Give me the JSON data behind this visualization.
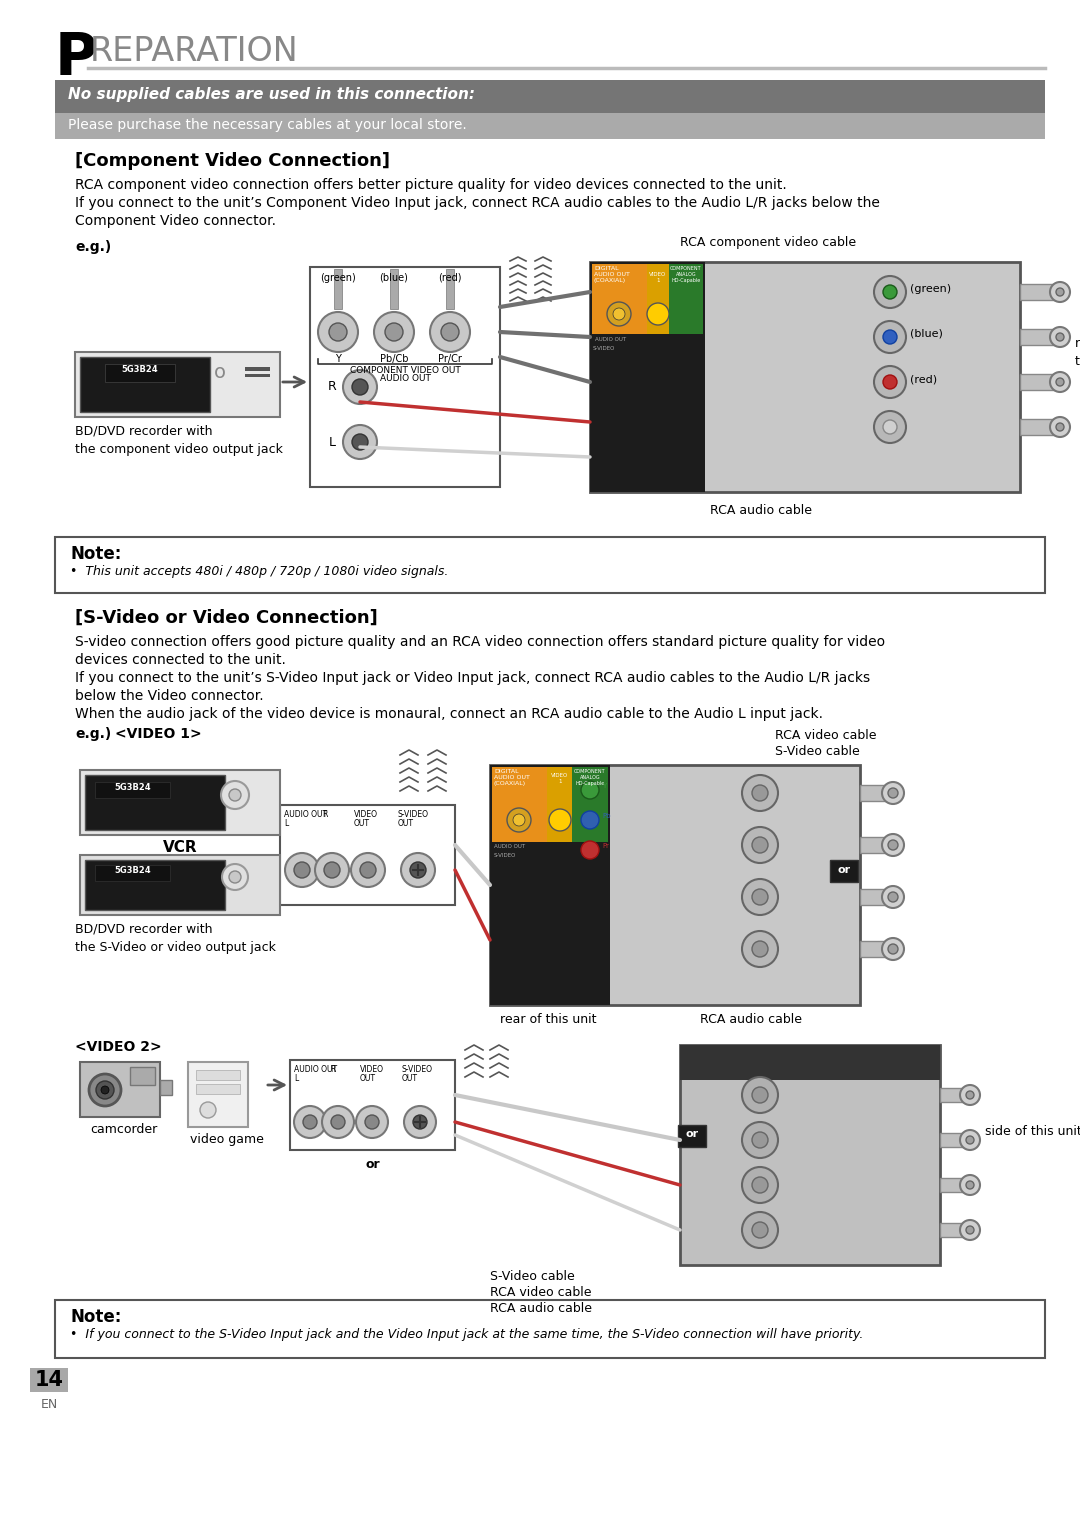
{
  "page_bg": "#ffffff",
  "title_letter": "P",
  "title_rest": "REPARATION",
  "title_letter_color": "#000000",
  "title_rest_color": "#808080",
  "title_line_color": "#a0a0a0",
  "banner_bg_dark": "#7a7a7a",
  "banner_bg_light": "#a8a8a8",
  "banner_text_bold_italic": "No supplied cables are used in this connection:",
  "banner_text_normal": "Please purchase the necessary cables at your local store.",
  "section1_title": "[Component Video Connection]",
  "section1_body1": "RCA component video connection offers better picture quality for video devices connected to the unit.",
  "section1_body2": "If you connect to the unit’s Component Video Input jack, connect RCA audio cables to the Audio L/R jacks below the",
  "section1_body3": "Component Video connector.",
  "section1_eg": "e.g.)",
  "section1_label_rca": "RCA component video cable",
  "section1_label_rear": "rear of\nthis unit",
  "section1_label_rca_audio": "RCA audio cable",
  "section1_label_bd": "BD/DVD recorder with\nthe component video output jack",
  "section1_label_green": "(green)",
  "section1_label_blue": "(blue)",
  "section1_label_red": "(red)",
  "section1_label_component_out": "COMPONENT VIDEO OUT",
  "section1_label_audio_out": "AUDIO OUT",
  "section1_label_y": "Y",
  "section1_label_pbcb": "Pb/Cb",
  "section1_label_prcr": "Pr/Cr",
  "note1_title": "Note:",
  "note1_body": "•  This unit accepts 480i / 480p / 720p / 1080i video signals.",
  "section2_title": "[S-Video or Video Connection]",
  "section2_body1": "S-video connection offers good picture quality and an RCA video connection offers standard picture quality for video",
  "section2_body2": "devices connected to the unit.",
  "section2_body3": "If you connect to the unit’s S-Video Input jack or Video Input jack, connect RCA audio cables to the Audio L/R jacks",
  "section2_body4": "below the Video connector.",
  "section2_body5": "When the audio jack of the video device is monaural, connect an RCA audio cable to the Audio L input jack.",
  "section2_eg": "e.g.)",
  "section2_video1": "<VIDEO 1>",
  "section2_label_vcr": "VCR",
  "section2_label_bd2": "BD/DVD recorder with\nthe S-Video or video output jack",
  "section2_label_rca_video": "RCA video cable",
  "section2_label_svideo": "S-Video cable",
  "section2_label_rear2": "rear of this unit",
  "section2_label_rca_audio2": "RCA audio cable",
  "section2_video2": "<VIDEO 2>",
  "section2_label_camcorder": "camcorder",
  "section2_label_videogame": "video game",
  "section2_label_svideo2": "S-Video cable",
  "section2_label_rca_video2": "RCA video cable",
  "section2_label_rca_audio3": "RCA audio cable",
  "section2_label_side": "side of this unit",
  "note2_title": "Note:",
  "note2_body": "•  If you connect to the S-Video Input jack and the Video Input jack at the same time, the S-Video connection will have priority.",
  "page_num": "14",
  "page_lang": "EN"
}
